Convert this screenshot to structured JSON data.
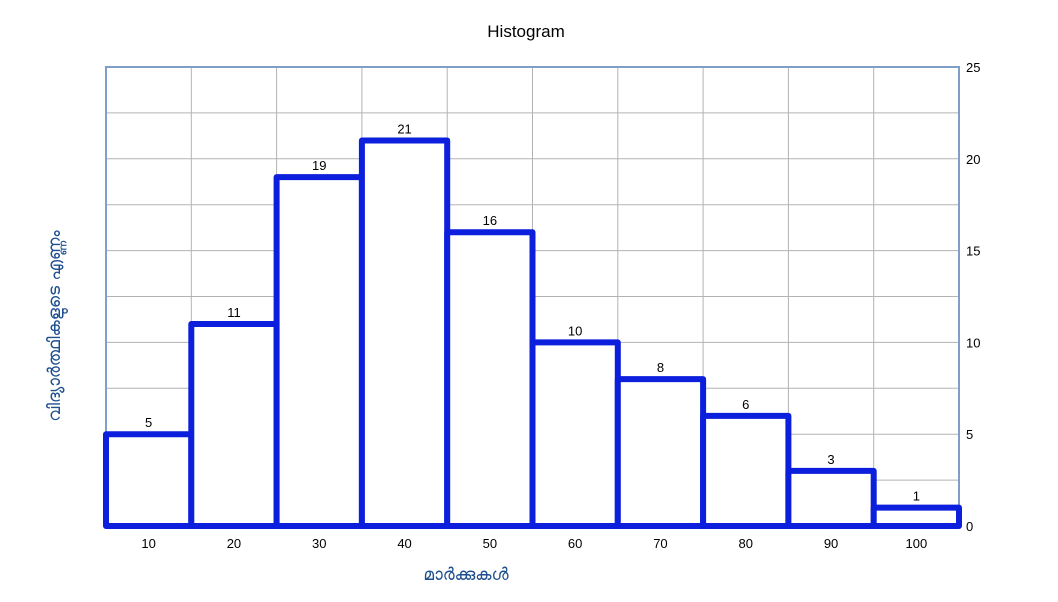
{
  "chart_data": {
    "type": "bar",
    "title": "Histogram",
    "xlabel": "മാർക്കുകൾ",
    "ylabel": "വിദ്യാർത്ഥികളുടെ  എണ്ണം",
    "categories": [
      "10",
      "20",
      "30",
      "40",
      "50",
      "60",
      "70",
      "80",
      "90",
      "100"
    ],
    "values": [
      5,
      11,
      19,
      21,
      16,
      10,
      8,
      6,
      3,
      1
    ],
    "data_labels": [
      "5",
      "11",
      "19",
      "21",
      "16",
      "10",
      "8",
      "6",
      "3",
      "1"
    ],
    "y_ticks": [
      "0",
      "5",
      "10",
      "15",
      "20",
      "25"
    ],
    "ylim": [
      0,
      25
    ],
    "y_axis_side": "right",
    "grid": true,
    "legend": "none",
    "bar_color": "#0c1fdc",
    "grid_color": "#b3b3b3",
    "frame_color": "#7f9fc8"
  }
}
